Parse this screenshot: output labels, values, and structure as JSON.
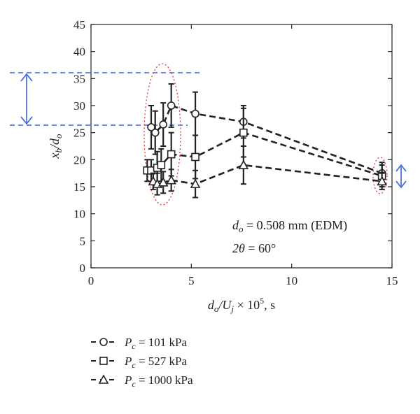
{
  "chart_data": {
    "type": "scatter",
    "title": "",
    "xlabel": {
      "base": "d",
      "sub": "o",
      "mid": "/U",
      "sub2": "j",
      "rest": " × 10",
      "sup": "5",
      "unit": ", s"
    },
    "ylabel": {
      "base": "x",
      "sub": "b",
      "mid": "/d",
      "sub2": "o"
    },
    "xlim": [
      0,
      15
    ],
    "ylim": [
      0,
      45
    ],
    "xticks": [
      0,
      5,
      10,
      15
    ],
    "yticks": [
      0,
      5,
      10,
      15,
      20,
      25,
      30,
      35,
      40,
      45
    ],
    "grid": false,
    "legend_position": "below",
    "annotations": [
      {
        "sym": "d",
        "sub": "o",
        "text": " = 0.508 mm (EDM)"
      },
      {
        "sym": "2θ",
        "sub": "",
        "text": " = 60°"
      }
    ],
    "series": [
      {
        "name": "= 101 kPa",
        "label_sym": "P",
        "label_sub": "c",
        "marker": "circle",
        "x": [
          3.0,
          3.2,
          3.6,
          4.0,
          5.2,
          7.6,
          14.5
        ],
        "y": [
          26.0,
          25.0,
          26.5,
          30.0,
          28.5,
          27.0,
          17.5
        ],
        "err": [
          4.0,
          4.0,
          4.0,
          4.0,
          4.0,
          3.0,
          2.0
        ]
      },
      {
        "name": "= 527 kPa",
        "label_sym": "P",
        "label_sub": "c",
        "marker": "square",
        "x": [
          2.8,
          3.0,
          3.3,
          3.5,
          4.0,
          5.2,
          7.6,
          14.5
        ],
        "y": [
          18.0,
          18.0,
          18.5,
          19.0,
          21.0,
          20.5,
          25.0,
          17.0
        ],
        "err": [
          2.0,
          2.0,
          3.0,
          3.0,
          4.0,
          4.0,
          4.5,
          2.0
        ]
      },
      {
        "name": "= 1000 kPa",
        "label_sym": "P",
        "label_sub": "c",
        "marker": "triangle",
        "x": [
          3.1,
          3.3,
          3.6,
          4.0,
          5.2,
          7.6,
          14.5
        ],
        "y": [
          16.0,
          15.5,
          15.8,
          16.2,
          15.5,
          19.0,
          16.0
        ],
        "err": [
          1.5,
          2.0,
          2.0,
          2.0,
          2.5,
          3.5,
          1.5
        ]
      }
    ],
    "overlay": {
      "dashed_color": "#3a5fd8",
      "ellipse_color": "#e03a3a"
    }
  }
}
